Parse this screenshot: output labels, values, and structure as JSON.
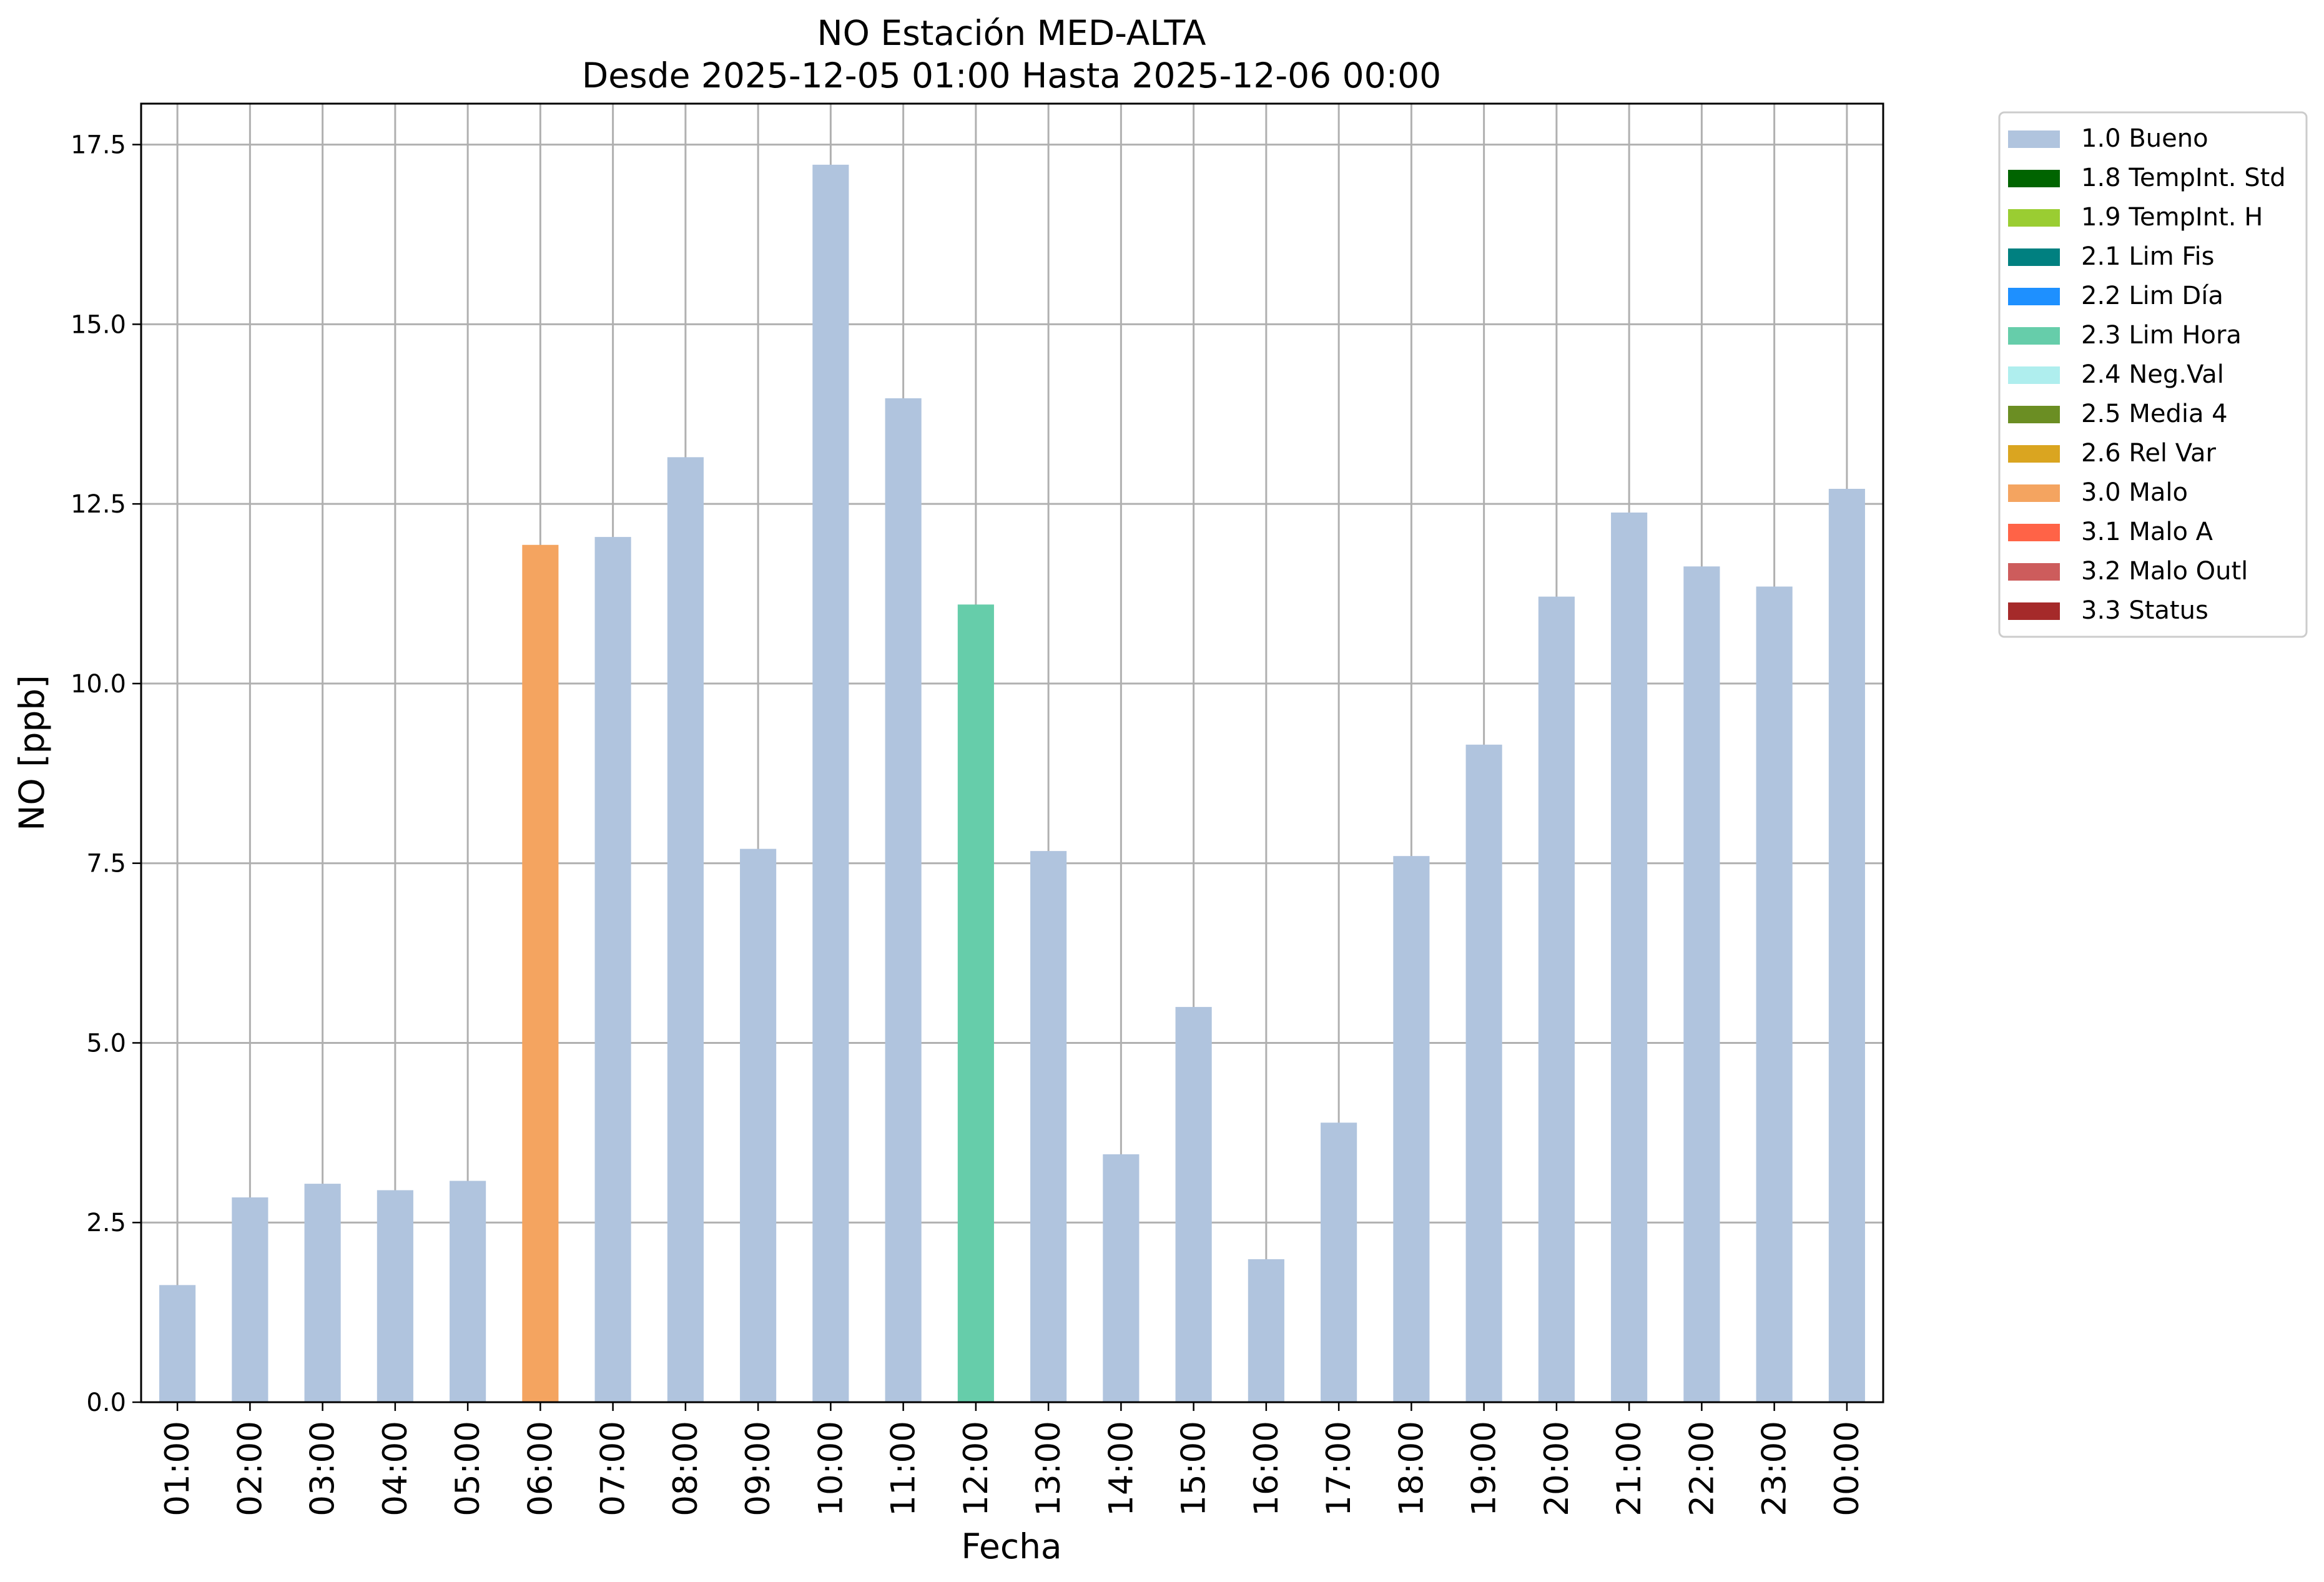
{
  "chart_data": {
    "type": "bar",
    "title": "NO Estación MED-ALTA",
    "subtitle": "Desde 2025-12-05 01:00 Hasta 2025-12-06 00:00",
    "xlabel": "Fecha",
    "ylabel": "NO [ppb]",
    "ylim": [
      0,
      18.07
    ],
    "yticks": [
      "0.0",
      "2.5",
      "5.0",
      "7.5",
      "10.0",
      "12.5",
      "15.0",
      "17.5"
    ],
    "grid": true,
    "legend_position": "outside-right-top",
    "categories": [
      "01:00",
      "02:00",
      "03:00",
      "04:00",
      "05:00",
      "06:00",
      "07:00",
      "08:00",
      "09:00",
      "10:00",
      "11:00",
      "12:00",
      "13:00",
      "14:00",
      "15:00",
      "16:00",
      "17:00",
      "18:00",
      "19:00",
      "20:00",
      "21:00",
      "22:00",
      "23:00",
      "00:00"
    ],
    "values": [
      1.63,
      2.85,
      3.04,
      2.95,
      3.08,
      11.93,
      12.04,
      13.15,
      7.7,
      17.22,
      13.97,
      11.1,
      7.67,
      3.45,
      5.5,
      1.99,
      3.89,
      7.6,
      9.15,
      11.21,
      12.38,
      11.63,
      11.35,
      12.71
    ],
    "bar_flags": [
      "1.0 Bueno",
      "1.0 Bueno",
      "1.0 Bueno",
      "1.0 Bueno",
      "1.0 Bueno",
      "3.0 Malo",
      "1.0 Bueno",
      "1.0 Bueno",
      "1.0 Bueno",
      "1.0 Bueno",
      "1.0 Bueno",
      "2.3 Lim Hora",
      "1.0 Bueno",
      "1.0 Bueno",
      "1.0 Bueno",
      "1.0 Bueno",
      "1.0 Bueno",
      "1.0 Bueno",
      "1.0 Bueno",
      "1.0 Bueno",
      "1.0 Bueno",
      "1.0 Bueno",
      "1.0 Bueno",
      "1.0 Bueno"
    ],
    "legend": [
      {
        "label": "1.0 Bueno",
        "color": "#b0c4de"
      },
      {
        "label": "1.8 TempInt. Std",
        "color": "#006400"
      },
      {
        "label": "1.9 TempInt. H",
        "color": "#9acd32"
      },
      {
        "label": "2.1 Lim Fis",
        "color": "#008080"
      },
      {
        "label": "2.2 Lim Día",
        "color": "#1e90ff"
      },
      {
        "label": "2.3 Lim Hora",
        "color": "#66cdaa"
      },
      {
        "label": "2.4 Neg.Val",
        "color": "#afeeee"
      },
      {
        "label": "2.5 Media 4",
        "color": "#6b8e23"
      },
      {
        "label": "2.6 Rel Var",
        "color": "#daa520"
      },
      {
        "label": "3.0 Malo",
        "color": "#f4a460"
      },
      {
        "label": "3.1 Malo A",
        "color": "#ff6347"
      },
      {
        "label": "3.2 Malo Outl",
        "color": "#cd5c5c"
      },
      {
        "label": "3.3 Status",
        "color": "#a52a2a"
      }
    ]
  }
}
